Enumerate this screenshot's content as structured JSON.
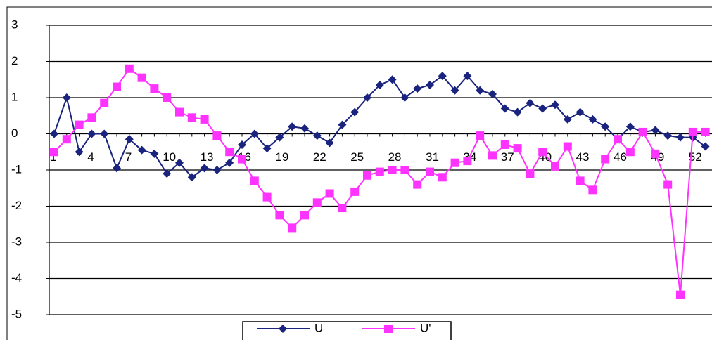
{
  "chart_data": {
    "type": "line",
    "categories": [
      "1",
      null,
      null,
      "4",
      null,
      null,
      "7",
      null,
      null,
      "10",
      null,
      null,
      "13",
      null,
      null,
      "16",
      null,
      null,
      "19",
      null,
      null,
      "22",
      null,
      null,
      "25",
      null,
      null,
      "28",
      null,
      null,
      "31",
      null,
      null,
      "34",
      null,
      null,
      "37",
      null,
      null,
      "40",
      null,
      null,
      "43",
      null,
      null,
      "46",
      null,
      null,
      "49",
      null,
      null,
      "52",
      null
    ],
    "series": [
      {
        "name": "U",
        "color": "#1a237e",
        "marker": "diamond",
        "values": [
          0,
          1.0,
          -0.5,
          0,
          0,
          -0.95,
          -0.15,
          -0.45,
          -0.55,
          -1.1,
          -0.8,
          -1.2,
          -0.95,
          -1.0,
          -0.8,
          -0.3,
          0,
          -0.4,
          -0.1,
          0.2,
          0.15,
          -0.05,
          -0.25,
          0.25,
          0.6,
          1.0,
          1.35,
          1.5,
          1.0,
          1.25,
          1.35,
          1.6,
          1.2,
          1.6,
          1.2,
          1.1,
          0.7,
          0.6,
          0.85,
          0.7,
          0.8,
          0.4,
          0.6,
          0.4,
          0.2,
          -0.15,
          0.2,
          0.05,
          0.1,
          -0.05,
          -0.1,
          -0.1,
          -0.35
        ]
      },
      {
        "name": "U'",
        "color": "#ff33ff",
        "marker": "square",
        "values": [
          -0.5,
          -0.15,
          0.25,
          0.45,
          0.85,
          1.3,
          1.8,
          1.55,
          1.25,
          1.0,
          0.6,
          0.45,
          0.4,
          -0.05,
          -0.5,
          -0.7,
          -1.3,
          -1.75,
          -2.25,
          -2.6,
          -2.25,
          -1.9,
          -1.65,
          -2.05,
          -1.6,
          -1.15,
          -1.05,
          -1.0,
          -1.0,
          -1.4,
          -1.05,
          -1.2,
          -0.8,
          -0.75,
          -0.05,
          -0.6,
          -0.3,
          -0.4,
          -1.1,
          -0.5,
          -0.9,
          -0.35,
          -1.3,
          -1.55,
          -0.7,
          -0.15,
          -0.5,
          0.05,
          -0.55,
          -1.4,
          -4.45,
          0.05,
          0.05
        ]
      }
    ],
    "ylim": [
      -5,
      3
    ],
    "yticks": [
      -5,
      -4,
      -3,
      -2,
      -1,
      0,
      1,
      2,
      3
    ],
    "grid": true,
    "legend": "bottom"
  }
}
